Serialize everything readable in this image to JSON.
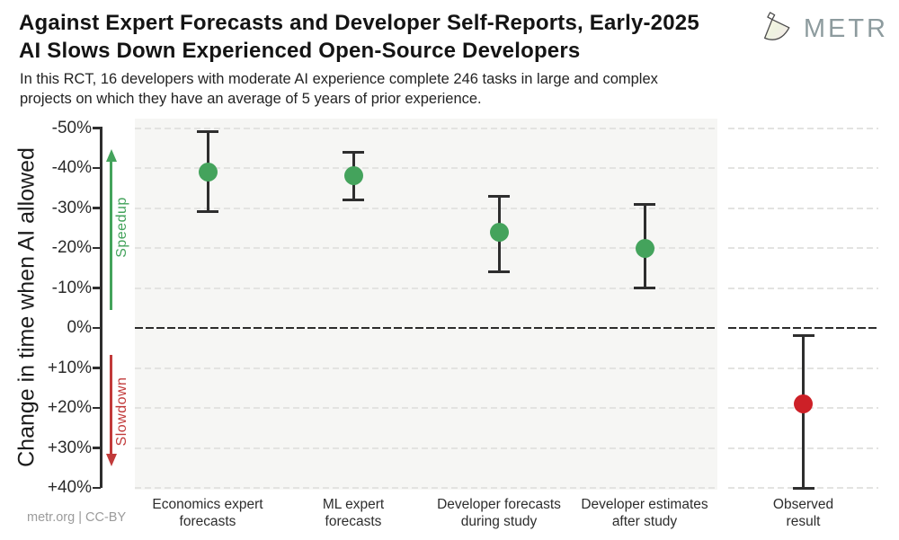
{
  "header": {
    "title_line1": "Against Expert Forecasts and Developer Self-Reports, Early-2025",
    "title_line2": "AI Slows Down Experienced Open-Source Developers",
    "subtitle_line1": "In this RCT, 16 developers with moderate AI experience complete 246 tasks in large and complex",
    "subtitle_line2": "projects on which they have an average of 5 years of prior experience.",
    "logo_text": "METR"
  },
  "chart_data": {
    "type": "scatter",
    "subtype": "point-estimates-with-error-bars",
    "y_axis_label": "Change in time when AI allowed",
    "ylim": [
      -50,
      40
    ],
    "axis_inverted": true,
    "grid": "dashed horizontal gridlines at every 10%",
    "zero_line": true,
    "y_ticks": [
      {
        "label": "-50%",
        "value": -50
      },
      {
        "label": "-40%",
        "value": -40
      },
      {
        "label": "-30%",
        "value": -30
      },
      {
        "label": "-20%",
        "value": -20
      },
      {
        "label": "-10%",
        "value": -10
      },
      {
        "label": "0%",
        "value": 0
      },
      {
        "label": "+10%",
        "value": 10
      },
      {
        "label": "+20%",
        "value": 20
      },
      {
        "label": "+30%",
        "value": 30
      },
      {
        "label": "+40%",
        "value": 40
      }
    ],
    "annotations": {
      "speedup_label": "Speedup",
      "slowdown_label": "Slowdown"
    },
    "series": [
      {
        "category": "Economics expert forecasts",
        "label_lines": [
          "Economics expert",
          "forecasts"
        ],
        "value": -39,
        "ci_low": -49,
        "ci_high": -29,
        "color": "#44a35c",
        "panel": "forecasts"
      },
      {
        "category": "ML expert forecasts",
        "label_lines": [
          "ML expert",
          "forecasts"
        ],
        "value": -38,
        "ci_low": -44,
        "ci_high": -32,
        "color": "#44a35c",
        "panel": "forecasts"
      },
      {
        "category": "Developer forecasts during study",
        "label_lines": [
          "Developer forecasts",
          "during study"
        ],
        "value": -24,
        "ci_low": -33,
        "ci_high": -14,
        "color": "#44a35c",
        "panel": "forecasts"
      },
      {
        "category": "Developer estimates after study",
        "label_lines": [
          "Developer estimates",
          "after study"
        ],
        "value": -20,
        "ci_low": -31,
        "ci_high": -10,
        "color": "#44a35c",
        "panel": "forecasts"
      },
      {
        "category": "Observed result",
        "label_lines": [
          "Observed",
          "result"
        ],
        "value": 19,
        "ci_low": 2,
        "ci_high": 40,
        "color": "#cd2027",
        "panel": "observed"
      }
    ],
    "colors": {
      "forecast_green": "#44a35c",
      "observed_red": "#cd2027",
      "speedup_green": "#44a35c",
      "slowdown_red": "#c13a3a",
      "panel_background": "#f6f6f4"
    }
  },
  "footer": {
    "credit": "metr.org | CC-BY"
  }
}
